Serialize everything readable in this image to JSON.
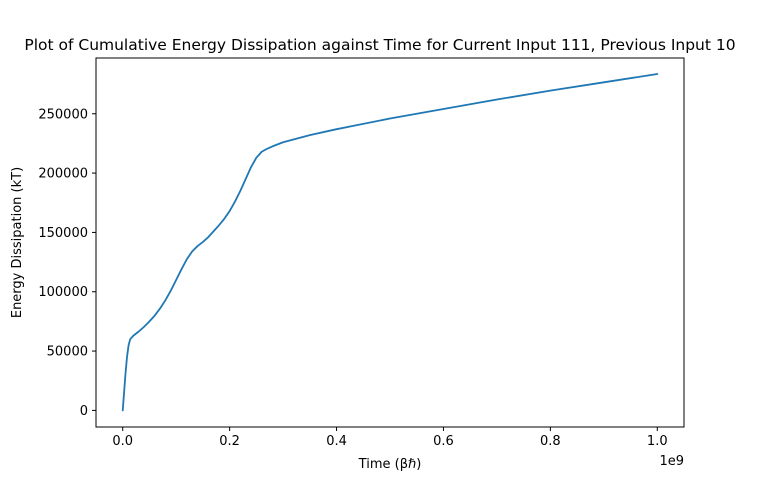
{
  "chart_data": {
    "type": "line",
    "title": "Plot of Cumulative Energy Dissipation against Time for Current Input 111, Previous Input 10",
    "xlabel": "Time (βℏ)",
    "ylabel": "Energy Dissipation (kT)",
    "x_offset_label": "1e9",
    "xlim": [
      -0.05,
      1.05
    ],
    "ylim": [
      -14000,
      297000
    ],
    "x_ticks": [
      0.0,
      0.2,
      0.4,
      0.6,
      0.8,
      1.0
    ],
    "x_tick_labels": [
      "0.0",
      "0.2",
      "0.4",
      "0.6",
      "0.8",
      "1.0"
    ],
    "y_ticks": [
      0,
      50000,
      100000,
      150000,
      200000,
      250000
    ],
    "y_tick_labels": [
      "0",
      "50000",
      "100000",
      "150000",
      "200000",
      "250000"
    ],
    "grid": false,
    "series": [
      {
        "color": "#1f77b4",
        "x": [
          0.0,
          0.002,
          0.005,
          0.008,
          0.011,
          0.014,
          0.02,
          0.03,
          0.04,
          0.05,
          0.06,
          0.07,
          0.08,
          0.09,
          0.1,
          0.11,
          0.12,
          0.13,
          0.14,
          0.15,
          0.16,
          0.17,
          0.18,
          0.19,
          0.2,
          0.21,
          0.22,
          0.23,
          0.24,
          0.25,
          0.26,
          0.27,
          0.28,
          0.3,
          0.35,
          0.4,
          0.5,
          0.6,
          0.7,
          0.8,
          0.9,
          1.0
        ],
        "y": [
          0,
          12000,
          30000,
          45000,
          55000,
          60000,
          63000,
          66500,
          70500,
          75000,
          80000,
          86000,
          93000,
          101000,
          110000,
          119000,
          127500,
          134000,
          138500,
          142000,
          146000,
          151000,
          156000,
          161500,
          168000,
          176000,
          185000,
          195000,
          205000,
          213000,
          218000,
          220500,
          222500,
          226000,
          232000,
          237000,
          246000,
          254000,
          262000,
          269500,
          276500,
          283500
        ]
      }
    ]
  }
}
